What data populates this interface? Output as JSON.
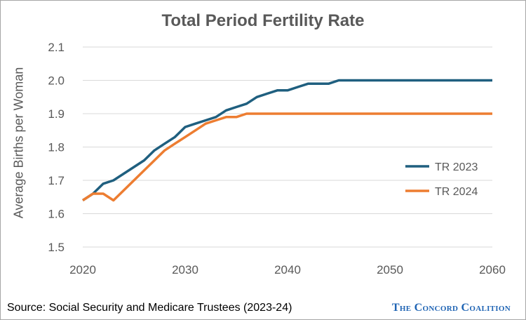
{
  "chart_data": {
    "type": "line",
    "title": "Total Period Fertility Rate",
    "xlabel": "",
    "ylabel": "Average Births per Woman",
    "xlim": [
      2020,
      2060
    ],
    "ylim": [
      1.5,
      2.1
    ],
    "x_ticks": [
      "2020",
      "2030",
      "2040",
      "2050",
      "2060"
    ],
    "y_ticks": [
      "1.5",
      "1.6",
      "1.7",
      "1.8",
      "1.9",
      "2.0",
      "2.1"
    ],
    "grid": "horizontal",
    "legend_position": "right-middle",
    "series": [
      {
        "name": "TR 2023",
        "color": "#1f5f7f",
        "x": [
          2020,
          2021,
          2022,
          2023,
          2024,
          2025,
          2026,
          2027,
          2028,
          2029,
          2030,
          2031,
          2032,
          2033,
          2034,
          2035,
          2036,
          2037,
          2038,
          2039,
          2040,
          2041,
          2042,
          2043,
          2044,
          2045,
          2046,
          2050,
          2060
        ],
        "values": [
          1.64,
          1.66,
          1.69,
          1.7,
          1.72,
          1.74,
          1.76,
          1.79,
          1.81,
          1.83,
          1.86,
          1.87,
          1.88,
          1.89,
          1.91,
          1.92,
          1.93,
          1.95,
          1.96,
          1.97,
          1.97,
          1.98,
          1.99,
          1.99,
          1.99,
          2.0,
          2.0,
          2.0,
          2.0
        ]
      },
      {
        "name": "TR 2024",
        "color": "#ed7d31",
        "x": [
          2020,
          2021,
          2022,
          2023,
          2024,
          2025,
          2026,
          2027,
          2028,
          2029,
          2030,
          2031,
          2032,
          2033,
          2034,
          2035,
          2036,
          2040,
          2050,
          2060
        ],
        "values": [
          1.64,
          1.66,
          1.66,
          1.64,
          1.67,
          1.7,
          1.73,
          1.76,
          1.79,
          1.81,
          1.83,
          1.85,
          1.87,
          1.88,
          1.89,
          1.89,
          1.9,
          1.9,
          1.9,
          1.9
        ]
      }
    ]
  },
  "footer": {
    "source": "Source: Social Security and Medicare Trustees (2023-24)",
    "brand": "The Concord Coalition"
  }
}
